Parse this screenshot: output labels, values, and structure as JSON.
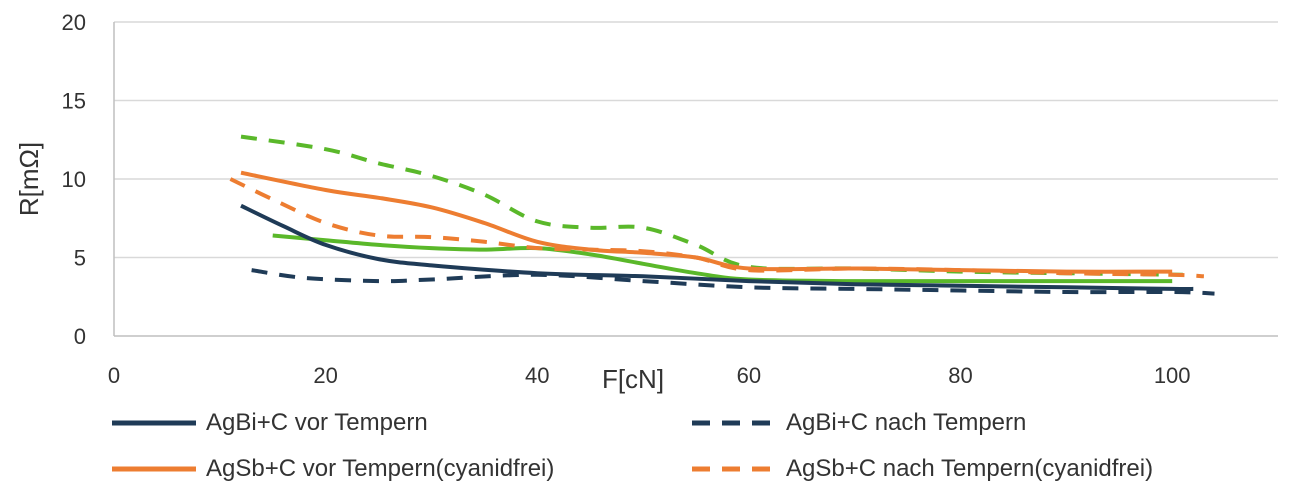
{
  "chart_data": {
    "type": "line",
    "xlabel": "F[cN]",
    "ylabel": "R[mΩ]",
    "xlim": [
      0,
      110
    ],
    "ylim": [
      0,
      20
    ],
    "xticks": [
      0,
      20,
      40,
      60,
      80,
      100
    ],
    "yticks": [
      0,
      5,
      10,
      15,
      20
    ],
    "grid": "horizontal",
    "legend_position": "bottom",
    "series": [
      {
        "name": "AgBi+C vor Tempern",
        "color": "#1f3b57",
        "dash": "solid",
        "x": [
          12,
          16,
          20,
          25,
          30,
          40,
          50,
          60,
          70,
          80,
          90,
          100,
          102
        ],
        "y": [
          8.3,
          7.0,
          5.8,
          4.9,
          4.5,
          4.0,
          3.8,
          3.5,
          3.3,
          3.2,
          3.1,
          3.0,
          3.0
        ]
      },
      {
        "name": "AgBi+C nach Tempern",
        "color": "#1f3b57",
        "dash": "dashed",
        "x": [
          13,
          18,
          25,
          30,
          40,
          50,
          60,
          70,
          80,
          90,
          100,
          104
        ],
        "y": [
          4.2,
          3.7,
          3.5,
          3.6,
          3.9,
          3.5,
          3.1,
          3.0,
          2.9,
          2.8,
          2.8,
          2.7
        ]
      },
      {
        "name": "AgSb+C vor Tempern(cyanidfrei)",
        "color": "#ed7d31",
        "dash": "solid",
        "x": [
          12,
          20,
          25,
          30,
          35,
          40,
          45,
          50,
          55,
          60,
          70,
          80,
          90,
          100
        ],
        "y": [
          10.4,
          9.3,
          8.8,
          8.2,
          7.2,
          6.0,
          5.5,
          5.3,
          5.0,
          4.3,
          4.3,
          4.2,
          4.1,
          4.1
        ]
      },
      {
        "name": "AgSb+C nach Tempern(cyanidfrei)",
        "color": "#ed7d31",
        "dash": "dashed",
        "x": [
          11,
          15,
          20,
          25,
          30,
          35,
          40,
          45,
          50,
          55,
          60,
          70,
          80,
          90,
          100,
          103
        ],
        "y": [
          10.0,
          8.7,
          7.2,
          6.4,
          6.3,
          6.0,
          5.6,
          5.5,
          5.4,
          5.0,
          4.2,
          4.3,
          4.2,
          4.0,
          3.9,
          3.8
        ]
      },
      {
        "name": "",
        "color": "#5ab82a",
        "dash": "solid",
        "x": [
          15,
          20,
          25,
          30,
          35,
          40,
          45,
          50,
          55,
          60,
          70,
          80,
          90,
          100
        ],
        "y": [
          6.4,
          6.1,
          5.8,
          5.6,
          5.5,
          5.6,
          5.2,
          4.6,
          4.0,
          3.6,
          3.5,
          3.5,
          3.5,
          3.5
        ]
      },
      {
        "name": "",
        "color": "#5ab82a",
        "dash": "dashed",
        "x": [
          12,
          20,
          25,
          30,
          35,
          40,
          45,
          50,
          55,
          60,
          70,
          80,
          90,
          101
        ],
        "y": [
          12.7,
          11.9,
          11.0,
          10.2,
          9.0,
          7.3,
          6.9,
          6.9,
          5.8,
          4.4,
          4.3,
          4.1,
          4.0,
          3.9
        ]
      }
    ]
  }
}
